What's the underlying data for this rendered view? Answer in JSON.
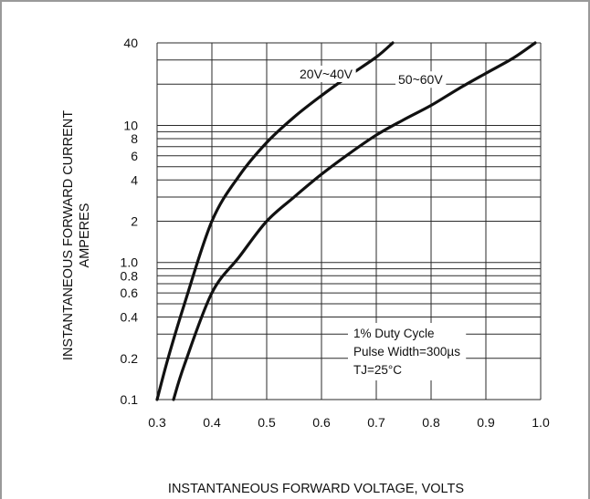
{
  "chart_data": {
    "type": "line",
    "title": "",
    "xlabel": "INSTANTANEOUS FORWARD VOLTAGE, VOLTS",
    "ylabel_lines": [
      "INSTANTANEOUS FORWARD CURRENT",
      "AMPERES"
    ],
    "x_scale": "linear",
    "y_scale": "log",
    "xlim": [
      0.3,
      1.0
    ],
    "ylim": [
      0.1,
      40
    ],
    "x_ticks": [
      0.3,
      0.4,
      0.5,
      0.6,
      0.7,
      0.8,
      0.9,
      1.0
    ],
    "x_tick_labels": [
      "0.3",
      "0.4",
      "0.5",
      "0.6",
      "0.7",
      "0.8",
      "0.9",
      "1.0"
    ],
    "y_tick_values": [
      0.1,
      0.2,
      0.4,
      0.6,
      0.8,
      1.0,
      2,
      4,
      6,
      8,
      10,
      40
    ],
    "y_tick_labels": [
      "0.1",
      "0.2",
      "0.4",
      "0.6",
      "0.8",
      "1.0",
      "2",
      "4",
      "6",
      "8",
      "10",
      "40"
    ],
    "y_grid_values": [
      0.1,
      0.2,
      0.3,
      0.4,
      0.5,
      0.6,
      0.7,
      0.8,
      0.9,
      1,
      2,
      3,
      4,
      5,
      6,
      7,
      8,
      9,
      10,
      20,
      30,
      40
    ],
    "grid": true,
    "series": [
      {
        "name": "20V~40V",
        "x": [
          0.3,
          0.32,
          0.35,
          0.4,
          0.45,
          0.5,
          0.55,
          0.6,
          0.65,
          0.7,
          0.73
        ],
        "y": [
          0.1,
          0.2,
          0.5,
          2.0,
          4.3,
          7.5,
          11.5,
          16.5,
          23.0,
          31.5,
          40.0
        ]
      },
      {
        "name": "50~60V",
        "x": [
          0.33,
          0.35,
          0.4,
          0.45,
          0.5,
          0.55,
          0.6,
          0.65,
          0.7,
          0.75,
          0.8,
          0.85,
          0.9,
          0.95,
          0.99
        ],
        "y": [
          0.1,
          0.18,
          0.6,
          1.1,
          2.0,
          3.0,
          4.4,
          6.2,
          8.5,
          11.0,
          14.0,
          18.5,
          24.0,
          31.0,
          40.0
        ]
      }
    ],
    "series_label_positions": [
      {
        "x": 0.56,
        "y": 22
      },
      {
        "x": 0.74,
        "y": 20
      }
    ],
    "annotation_lines": [
      "1% Duty Cycle",
      "Pulse Width=300µs",
      "TJ=25°C"
    ]
  },
  "colors": {
    "frame": "#9a9a9a",
    "grid": "#2a2a2a",
    "curve": "#111111"
  }
}
